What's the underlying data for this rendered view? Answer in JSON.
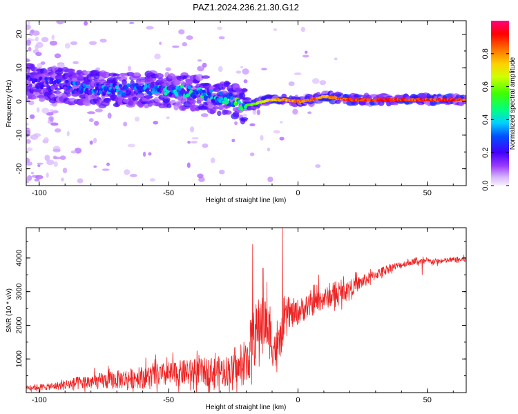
{
  "chart_data": [
    {
      "type": "heatmap",
      "title": "PAZ1.2024.236.21.30.G12",
      "xlabel": "Height of straight line (km)",
      "ylabel": "Frequency (Hz)",
      "xlim": [
        -105,
        65
      ],
      "ylim": [
        -25,
        24
      ],
      "x_ticks": [
        -100,
        -50,
        0,
        50
      ],
      "y_ticks": [
        -20,
        -10,
        0,
        10,
        20
      ],
      "grid": false,
      "colorbar": {
        "label": "Normalized spectral amplitude",
        "range": [
          0,
          1
        ],
        "ticks": [
          0.0,
          0.2,
          0.4,
          0.6,
          0.8
        ],
        "colormap": "rainbow (magenta-violet-blue-cyan-green-yellow-orange-red)"
      },
      "ridge": {
        "description": "dominant frequency ridge",
        "x": [
          -103,
          -95,
          -85,
          -75,
          -65,
          -55,
          -45,
          -38,
          -32,
          -26,
          -22,
          -18,
          -14,
          -10,
          -5,
          0,
          5,
          10,
          15,
          20,
          30,
          40,
          50,
          65
        ],
        "freq": [
          6,
          5,
          4,
          3.5,
          3.5,
          3.5,
          3,
          2.5,
          1.5,
          0.5,
          -1,
          -1,
          0,
          0.5,
          0.5,
          0,
          0.5,
          1.5,
          1,
          0.5,
          0.5,
          0.5,
          0.5,
          0.5
        ],
        "amplitude": [
          0.2,
          0.25,
          0.3,
          0.35,
          0.3,
          0.35,
          0.4,
          0.45,
          0.45,
          0.5,
          0.55,
          0.6,
          0.7,
          0.8,
          0.85,
          0.9,
          0.9,
          0.85,
          0.9,
          0.95,
          0.95,
          0.95,
          0.95,
          0.95
        ]
      }
    },
    {
      "type": "line",
      "title": "",
      "xlabel": "Height of straight line (km)",
      "ylabel": "SNR (10 * v/v)",
      "xlim": [
        -105,
        65
      ],
      "ylim": [
        0,
        4900
      ],
      "x_ticks": [
        -100,
        -50,
        0,
        50
      ],
      "y_ticks": [
        1000,
        2000,
        3000,
        4000
      ],
      "grid": false,
      "series": [
        {
          "color": "#ee2222",
          "trend_x": [
            -105,
            -95,
            -85,
            -75,
            -65,
            -55,
            -45,
            -35,
            -28,
            -22,
            -20,
            -18,
            -16,
            -14,
            -12,
            -10,
            -8,
            -6,
            -4,
            -2,
            0,
            5,
            10,
            15,
            20,
            25,
            30,
            35,
            40,
            45,
            50,
            55,
            60,
            65
          ],
          "trend_y": [
            150,
            180,
            280,
            350,
            420,
            500,
            580,
            620,
            650,
            700,
            900,
            1400,
            1800,
            2200,
            2000,
            1500,
            1200,
            1800,
            2400,
            2300,
            2400,
            2600,
            2800,
            2900,
            3100,
            3300,
            3500,
            3700,
            3800,
            3900,
            3900,
            3900,
            3950,
            3950
          ],
          "noise_amplitude_y": [
            80,
            100,
            200,
            250,
            300,
            350,
            380,
            420,
            450,
            500,
            700,
            900,
            900,
            900,
            800,
            700,
            600,
            500,
            450,
            400,
            380,
            350,
            320,
            300,
            250,
            200,
            150,
            120,
            100,
            90,
            90,
            80,
            80,
            80
          ],
          "spikes": [
            {
              "x": -17.5,
              "y": 4400
            },
            {
              "x": -13.5,
              "y": 3700
            },
            {
              "x": -6,
              "y": 4950
            },
            {
              "x": 8,
              "y": 3500
            },
            {
              "x": 48,
              "y": 3500
            }
          ]
        }
      ]
    }
  ]
}
